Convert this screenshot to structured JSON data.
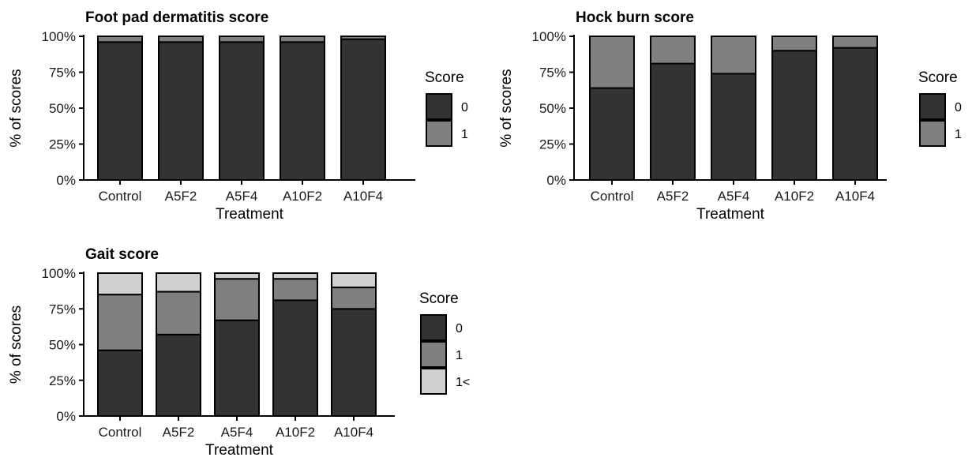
{
  "legend_title": "Score",
  "colors": {
    "0": "#333333",
    "1": "#7f7f7f",
    "1<": "#d0d0d0"
  },
  "chart_data": [
    {
      "type": "bar",
      "stacked": true,
      "title": "Foot pad dermatitis score",
      "xlabel": "Treatment",
      "ylabel": "% of scores",
      "yticks": [
        "0%",
        "25%",
        "50%",
        "75%",
        "100%"
      ],
      "ylim": [
        0,
        100
      ],
      "categories": [
        "Control",
        "A5F2",
        "A5F4",
        "A10F2",
        "A10F4"
      ],
      "series": [
        {
          "name": "0",
          "values": [
            96,
            96,
            96,
            96,
            98
          ]
        },
        {
          "name": "1",
          "values": [
            4,
            4,
            4,
            4,
            2
          ]
        }
      ],
      "legend": "right"
    },
    {
      "type": "bar",
      "stacked": true,
      "title": "Hock burn score",
      "xlabel": "Treatment",
      "ylabel": "% of scores",
      "yticks": [
        "0%",
        "25%",
        "50%",
        "75%",
        "100%"
      ],
      "ylim": [
        0,
        100
      ],
      "categories": [
        "Control",
        "A5F2",
        "A5F4",
        "A10F2",
        "A10F4"
      ],
      "series": [
        {
          "name": "0",
          "values": [
            64,
            81,
            74,
            90,
            92
          ]
        },
        {
          "name": "1",
          "values": [
            36,
            19,
            26,
            10,
            8
          ]
        }
      ],
      "legend": "right"
    },
    {
      "type": "bar",
      "stacked": true,
      "title": "Gait score",
      "xlabel": "Treatment",
      "ylabel": "% of scores",
      "yticks": [
        "0%",
        "25%",
        "50%",
        "75%",
        "100%"
      ],
      "ylim": [
        0,
        100
      ],
      "categories": [
        "Control",
        "A5F2",
        "A5F4",
        "A10F2",
        "A10F4"
      ],
      "series": [
        {
          "name": "0",
          "values": [
            46,
            57,
            67,
            81,
            75
          ]
        },
        {
          "name": "1",
          "values": [
            39,
            30,
            29,
            15,
            15
          ]
        },
        {
          "name": "1<",
          "values": [
            15,
            13,
            4,
            4,
            10
          ]
        }
      ],
      "legend": "right"
    }
  ]
}
